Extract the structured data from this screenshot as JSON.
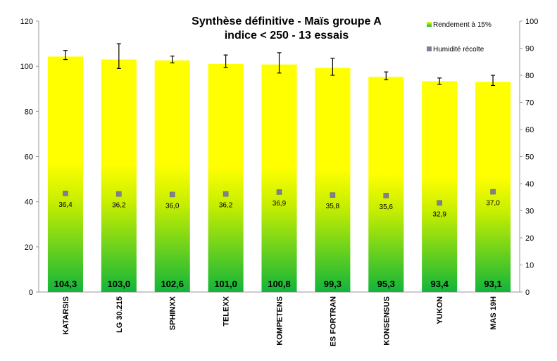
{
  "chart_data": {
    "type": "bar",
    "title": [
      "Synthèse définitive - Maïs groupe A",
      "indice < 250 - 13 essais"
    ],
    "categories": [
      "KATARSIS",
      "LG 30.215",
      "SPHINXX",
      "TELEXX",
      "KOMPETENS",
      "ES FORTRAN",
      "KONSENSUS",
      "YUKON",
      "MAS 19H"
    ],
    "series": [
      {
        "name": "Rendement à 15%",
        "axis": "left",
        "values": [
          104.3,
          103.0,
          102.6,
          101.0,
          100.8,
          99.3,
          95.3,
          93.4,
          93.1
        ],
        "labels": [
          "104,3",
          "103,0",
          "102,6",
          "101,0",
          "100,8",
          "99,3",
          "95,3",
          "93,4",
          "93,1"
        ],
        "error_low": [
          103.0,
          99.0,
          101.5,
          99.5,
          97.0,
          96.0,
          94.0,
          92.0,
          91.5
        ],
        "error_high": [
          107.0,
          110.0,
          104.5,
          105.0,
          106.0,
          103.5,
          97.5,
          94.8,
          96.0
        ],
        "gradient": {
          "top": "#ffff00",
          "middle": "#c6ee00",
          "bottom": "#12b53a"
        }
      },
      {
        "name": "Humidité récolte",
        "axis": "right",
        "type": "scatter",
        "values": [
          36.4,
          36.2,
          36.0,
          36.2,
          36.9,
          35.8,
          35.6,
          32.9,
          37.0
        ],
        "labels": [
          "36,4",
          "36,2",
          "36,0",
          "36,2",
          "36,9",
          "35,8",
          "35,6",
          "32,9",
          "37,0"
        ],
        "marker_color": "#7f7f96"
      }
    ],
    "y_left": {
      "min": 0,
      "max": 120,
      "ticks": [
        "0",
        "20",
        "40",
        "60",
        "80",
        "100",
        "120"
      ]
    },
    "y_right": {
      "min": 0,
      "max": 100,
      "ticks": [
        "0",
        "10",
        "20",
        "30",
        "40",
        "50",
        "60",
        "70",
        "80",
        "90",
        "100"
      ]
    },
    "grid": false,
    "legend": "top-right"
  }
}
